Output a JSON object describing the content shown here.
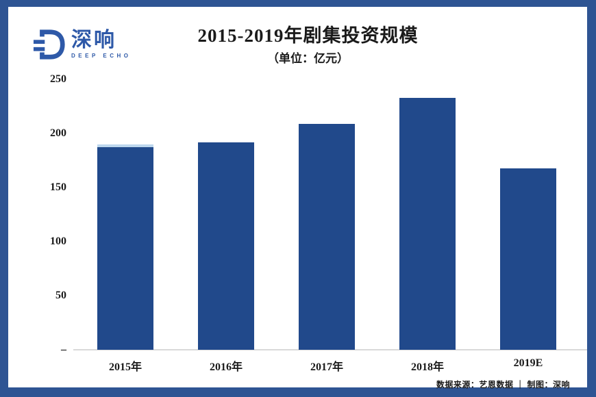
{
  "logo": {
    "cn": "深响",
    "en": "DEEP ECHO"
  },
  "header": {
    "title": "2015-2019年剧集投资规模",
    "subtitle": "（单位：亿元）"
  },
  "footer": {
    "source": "数据来源：艺恩数据 ｜ 制图：深响"
  },
  "colors": {
    "frame": "#2E5493",
    "bar": "#21498B",
    "highlight_cap": "#BDD7EE",
    "axis_line": "#D9D9D9",
    "logo_blue": "#2E59A8"
  },
  "chart_data": {
    "type": "bar",
    "title": "2015-2019年剧集投资规模",
    "unit_label": "（单位：亿元）",
    "categories": [
      "2015年",
      "2016年",
      "2017年",
      "2018年",
      "2019E"
    ],
    "values": [
      190,
      192,
      209,
      233,
      168
    ],
    "bar_color": "#21498B",
    "highlight": {
      "category_index": 0,
      "cap_color": "#BDD7EE",
      "cap_units": 2.5
    },
    "y_ticks": [
      250,
      200,
      150,
      100,
      50,
      0
    ],
    "y_zero_label": "–",
    "ylim": [
      0,
      250
    ],
    "grid": false,
    "legend_position": "none",
    "xlabel": "",
    "ylabel": ""
  }
}
